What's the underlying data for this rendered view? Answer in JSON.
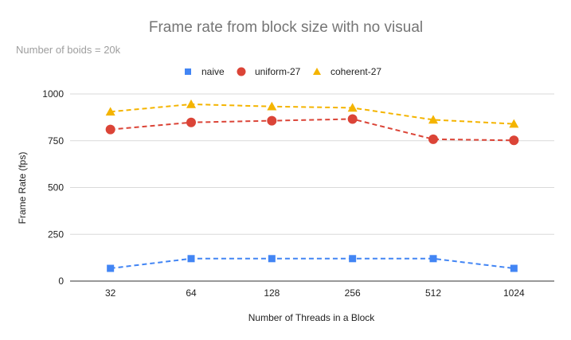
{
  "chart_data": {
    "type": "line",
    "title": "Frame rate from block size with no visual",
    "subtitle": "Number of boids = 20k",
    "xlabel": "Number of Threads in a Block",
    "ylabel": "Frame Rate (fps)",
    "categories": [
      "32",
      "64",
      "128",
      "256",
      "512",
      "1024"
    ],
    "ylim": [
      0,
      1000
    ],
    "yticks": [
      0,
      250,
      500,
      750,
      1000
    ],
    "grid": true,
    "legend_position": "top",
    "series": [
      {
        "name": "naive",
        "marker": "square",
        "color": "#4285f4",
        "values": [
          68,
          120,
          120,
          120,
          120,
          68
        ]
      },
      {
        "name": "uniform-27",
        "marker": "circle",
        "color": "#db4437",
        "values": [
          810,
          848,
          857,
          866,
          758,
          752
        ]
      },
      {
        "name": "coherent-27",
        "marker": "triangle",
        "color": "#f4b400",
        "values": [
          905,
          945,
          933,
          926,
          862,
          840
        ]
      }
    ]
  }
}
